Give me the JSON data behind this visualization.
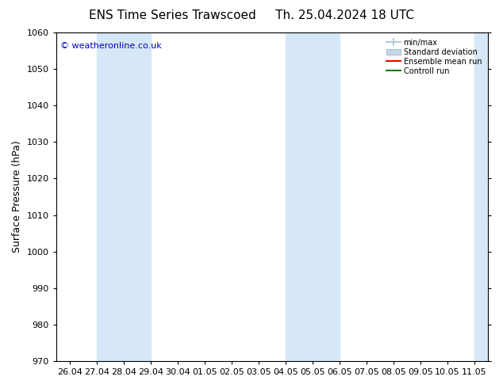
{
  "title_left": "ENS Time Series Trawscoed",
  "title_right": "Th. 25.04.2024 18 UTC",
  "ylabel": "Surface Pressure (hPa)",
  "copyright": "© weatheronline.co.uk",
  "copyright_color": "#0000bb",
  "ylim": [
    970,
    1060
  ],
  "yticks": [
    970,
    980,
    990,
    1000,
    1010,
    1020,
    1030,
    1040,
    1050,
    1060
  ],
  "xtick_labels": [
    "26.04",
    "27.04",
    "28.04",
    "29.04",
    "30.04",
    "01.05",
    "02.05",
    "03.05",
    "04.05",
    "05.05",
    "06.05",
    "07.05",
    "08.05",
    "09.05",
    "10.05",
    "11.05"
  ],
  "x_values": [
    0,
    1,
    2,
    3,
    4,
    5,
    6,
    7,
    8,
    9,
    10,
    11,
    12,
    13,
    14,
    15
  ],
  "shade_bands": [
    {
      "xmin": 1.0,
      "xmax": 2.0,
      "color": "#d6e8f7",
      "alpha": 1.0
    },
    {
      "xmin": 2.0,
      "xmax": 3.0,
      "color": "#d6e8f7",
      "alpha": 1.0
    },
    {
      "xmin": 8.0,
      "xmax": 9.0,
      "color": "#d6e8f7",
      "alpha": 1.0
    },
    {
      "xmin": 9.0,
      "xmax": 10.0,
      "color": "#d6e8f7",
      "alpha": 1.0
    },
    {
      "xmin": 15.0,
      "xmax": 15.5,
      "color": "#d6e8f7",
      "alpha": 1.0
    }
  ],
  "bg_color": "#ffffff",
  "plot_bg_color": "#ffffff",
  "grid_color": "#cccccc",
  "legend_labels": [
    "min/max",
    "Standard deviation",
    "Ensemble mean run",
    "Controll run"
  ],
  "minmax_color": "#a8bfd0",
  "std_color": "#c8d8e8",
  "ensemble_color": "#ff0000",
  "control_color": "#008000",
  "title_fontsize": 11,
  "tick_fontsize": 8,
  "ylabel_fontsize": 9,
  "copyright_fontsize": 8
}
